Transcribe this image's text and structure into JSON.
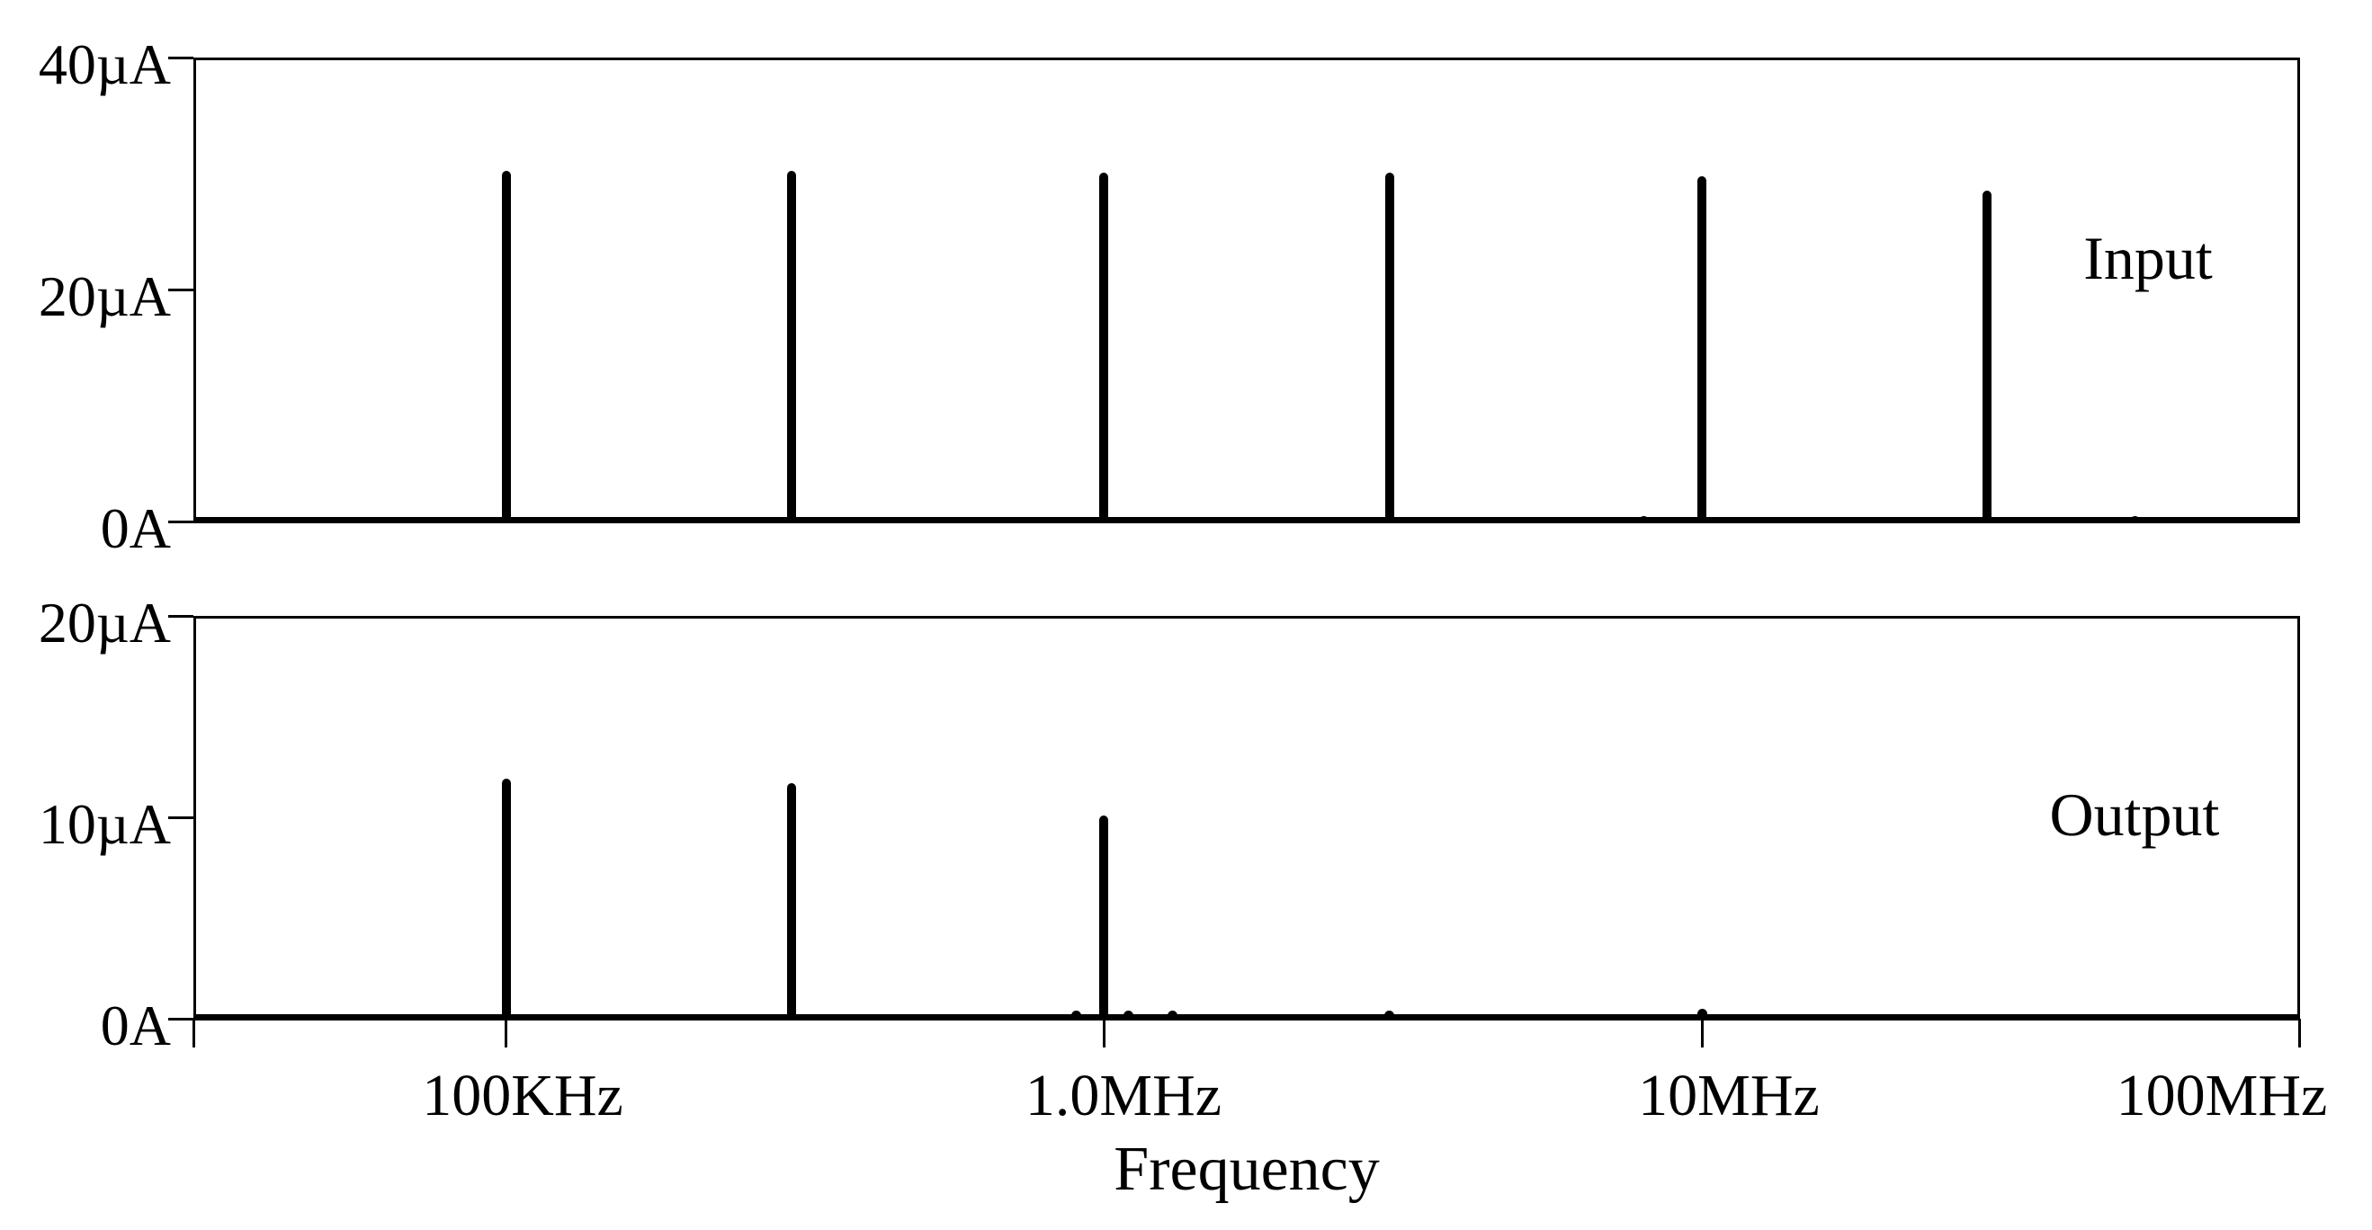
{
  "colors": {
    "foreground": "#000000",
    "background": "#ffffff"
  },
  "x_axis": {
    "title": "Frequency",
    "scale": "log",
    "xlim_hz": [
      30000,
      100000000
    ],
    "ticks": [
      {
        "hz": 100000,
        "label": "100KHz"
      },
      {
        "hz": 1000000,
        "label": "1.0MHz"
      },
      {
        "hz": 10000000,
        "label": "10MHz"
      },
      {
        "hz": 100000000,
        "label": "100MHz"
      }
    ]
  },
  "chart_data": [
    {
      "type": "stem",
      "title": "Input",
      "y_unit": "uA",
      "ylim": [
        0,
        40
      ],
      "y_ticks": [
        {
          "value": 0,
          "label": "0A"
        },
        {
          "value": 20,
          "label": "20µA"
        },
        {
          "value": 40,
          "label": "40µA"
        }
      ],
      "points": [
        {
          "freq_hz": 100000,
          "amp_ua": 30.2
        },
        {
          "freq_hz": 300000,
          "amp_ua": 30.2
        },
        {
          "freq_hz": 1000000,
          "amp_ua": 30.1
        },
        {
          "freq_hz": 3000000,
          "amp_ua": 30.1
        },
        {
          "freq_hz": 8000000,
          "amp_ua": 0.5
        },
        {
          "freq_hz": 10000000,
          "amp_ua": 29.8
        },
        {
          "freq_hz": 30000000,
          "amp_ua": 28.5
        },
        {
          "freq_hz": 53000000,
          "amp_ua": 0.4
        }
      ]
    },
    {
      "type": "stem",
      "title": "Output",
      "y_unit": "uA",
      "ylim": [
        0,
        20
      ],
      "y_ticks": [
        {
          "value": 0,
          "label": "0A"
        },
        {
          "value": 10,
          "label": "10µA"
        },
        {
          "value": 20,
          "label": "20µA"
        }
      ],
      "points": [
        {
          "freq_hz": 100000,
          "amp_ua": 11.9
        },
        {
          "freq_hz": 300000,
          "amp_ua": 11.7
        },
        {
          "freq_hz": 900000,
          "amp_ua": 0.4
        },
        {
          "freq_hz": 1000000,
          "amp_ua": 10.1
        },
        {
          "freq_hz": 1100000,
          "amp_ua": 0.4
        },
        {
          "freq_hz": 1300000,
          "amp_ua": 0.4
        },
        {
          "freq_hz": 3000000,
          "amp_ua": 0.4
        },
        {
          "freq_hz": 10000000,
          "amp_ua": 0.5
        }
      ]
    }
  ]
}
